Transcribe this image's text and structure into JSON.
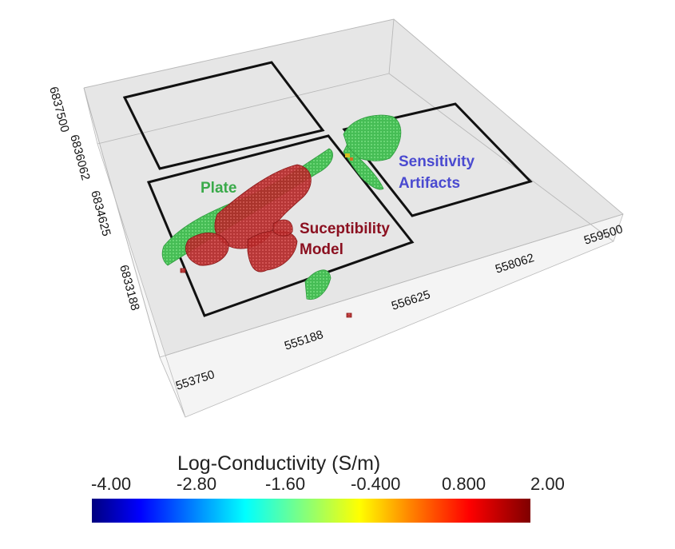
{
  "axes": {
    "x_ticks": [
      "555188",
      "556625",
      "558062",
      "559500"
    ],
    "y_ticks": [
      "6837500",
      "6836062",
      "6834625",
      "6833188"
    ],
    "corner_tick": "553750"
  },
  "annotations": {
    "plate": "Plate",
    "sensitivity_line1": "Sensitivity",
    "sensitivity_line2": "Artifacts",
    "susceptibility_line1": "Suceptibility",
    "susceptibility_line2": "Model"
  },
  "colorbar": {
    "title": "Log-Conductivity (S/m)",
    "ticks": [
      "-4.00",
      "-2.80",
      "-1.60",
      "-0.400",
      "0.800",
      "2.00"
    ],
    "range": [
      -4.0,
      2.0
    ],
    "colormap": "jet"
  },
  "colors": {
    "plate_label": "#3aaa4a",
    "sensitivity_label": "#4a4ad0",
    "susceptibility_label": "#8b1020",
    "green_body": "#4cc35a",
    "red_body": "#b82a2a",
    "box_face": "#e6e6e6"
  }
}
